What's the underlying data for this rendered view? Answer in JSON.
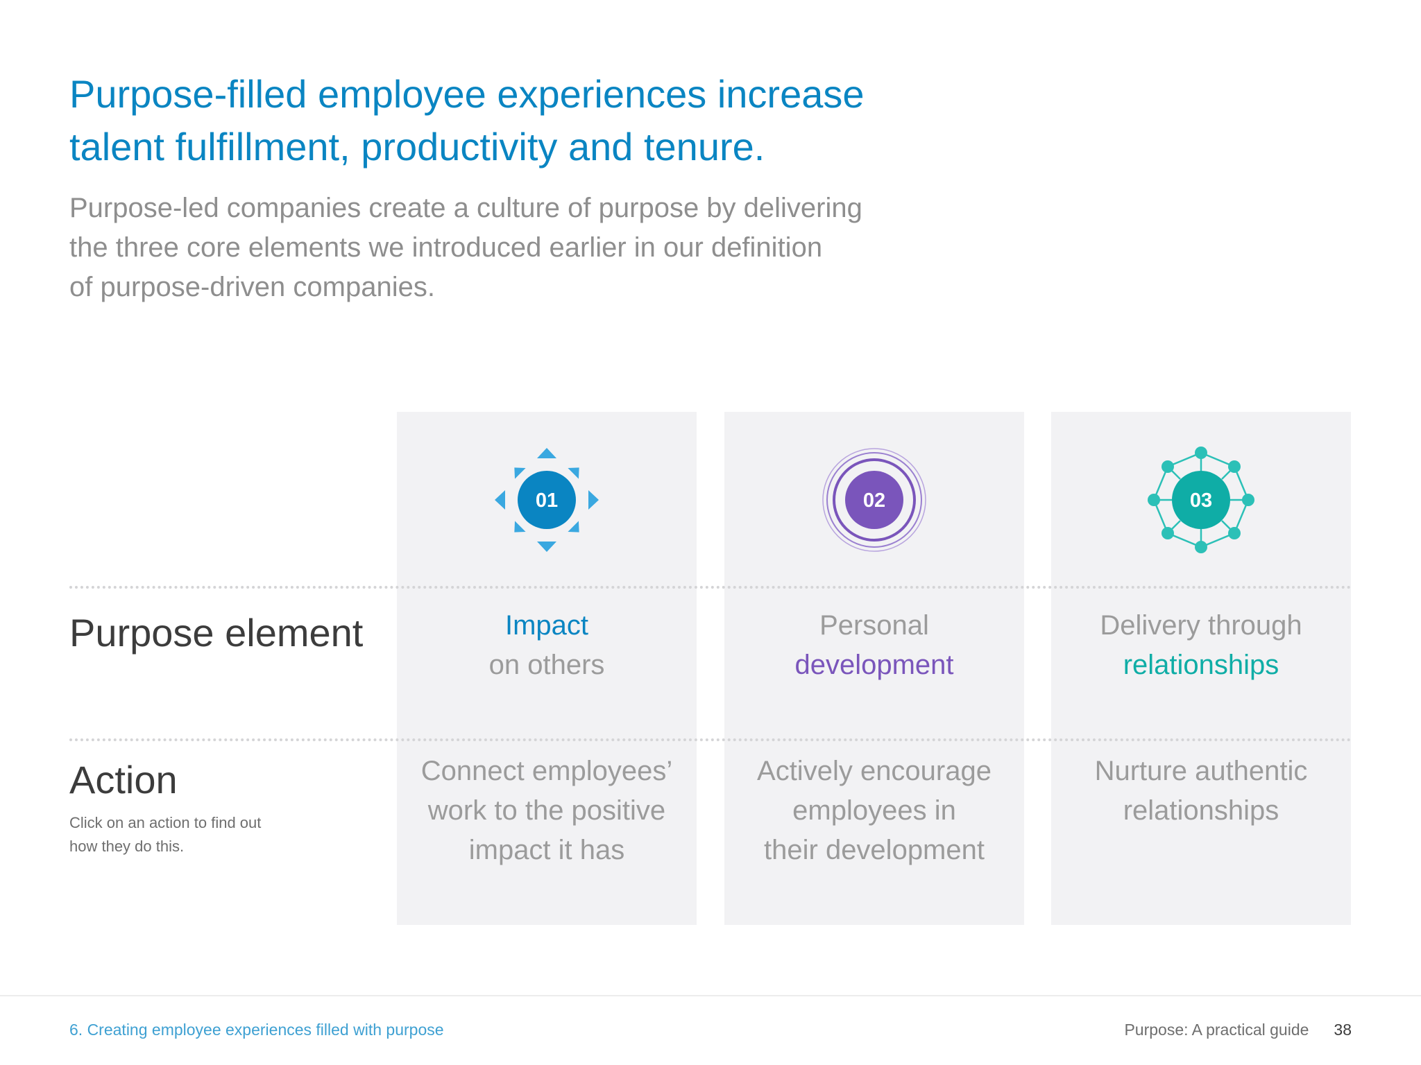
{
  "header": {
    "title_line1": "Purpose-filled employee experiences increase",
    "title_line2": "talent fulfillment, productivity and tenure.",
    "intro_line1": "Purpose-led companies create a culture of purpose by delivering",
    "intro_line2": "the three core elements we introduced earlier in our definition",
    "intro_line3": "of purpose-driven companies."
  },
  "rows": {
    "element_label": "Purpose element",
    "action_label": "Action",
    "action_hint_line1": "Click on an action to find out",
    "action_hint_line2": "how they do this."
  },
  "cards": [
    {
      "number": "01",
      "icon": "sun-arrows-icon",
      "color": "#0a85c2",
      "element_line1": "Impact",
      "element_line2": "on others",
      "action_line1": "Connect employees’",
      "action_line2": "work to the positive",
      "action_line3": "impact it has"
    },
    {
      "number": "02",
      "icon": "concentric-rings-icon",
      "color": "#7a55bb",
      "element_line1": "Personal",
      "element_line2": "development",
      "action_line1": "Actively encourage",
      "action_line2": "employees in",
      "action_line3": "their development"
    },
    {
      "number": "03",
      "icon": "network-nodes-icon",
      "color": "#0fada6",
      "element_line1": "Delivery through",
      "element_line2": "relationships",
      "action_line1": "Nurture authentic",
      "action_line2": "relationships"
    }
  ],
  "footer": {
    "section": "6. Creating employee experiences filled with purpose",
    "guide": "Purpose: A practical guide",
    "page": "38"
  }
}
